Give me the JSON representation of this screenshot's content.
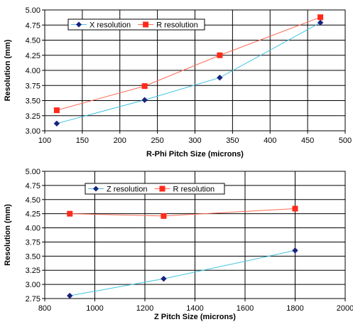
{
  "chart_data": [
    {
      "type": "line",
      "title": "",
      "xlabel": "R-Phi Pitch Size (microns)",
      "ylabel": "Resolution (mm)",
      "xlim": [
        100,
        500
      ],
      "ylim": [
        3.0,
        5.0
      ],
      "xticks": [
        "100",
        "150",
        "200",
        "250",
        "300",
        "350",
        "400",
        "450",
        "500"
      ],
      "yticks": [
        "3.00",
        "3.25",
        "3.50",
        "3.75",
        "4.00",
        "4.25",
        "4.50",
        "4.75",
        "5.00"
      ],
      "grid": true,
      "legend_position": "top-left",
      "series": [
        {
          "name": "X resolution",
          "marker": "diamond",
          "marker_color": "#1a237e",
          "line_color": "#40c4e0",
          "x": [
            116,
            233,
            333,
            467
          ],
          "y": [
            3.12,
            3.51,
            3.88,
            4.79
          ]
        },
        {
          "name": "R resolution",
          "marker": "square",
          "marker_color": "#ff2a1a",
          "line_color": "#ff6a55",
          "x": [
            116,
            233,
            333,
            467
          ],
          "y": [
            3.34,
            3.74,
            4.25,
            4.88
          ]
        }
      ]
    },
    {
      "type": "line",
      "title": "",
      "xlabel": "Z Pitch Size (microns)",
      "ylabel": "Resolution (mm)",
      "xlim": [
        800,
        2000
      ],
      "ylim": [
        2.75,
        5.0
      ],
      "xticks": [
        "800",
        "1000",
        "1200",
        "1400",
        "1600",
        "1800",
        "2000"
      ],
      "yticks": [
        "2.75",
        "3.00",
        "3.25",
        "3.50",
        "3.75",
        "4.00",
        "4.25",
        "4.50",
        "4.75",
        "5.00"
      ],
      "grid": true,
      "legend_position": "top-left",
      "series": [
        {
          "name": "Z resolution",
          "marker": "diamond",
          "marker_color": "#1a237e",
          "line_color": "#40c4e0",
          "x": [
            900,
            1275,
            1800
          ],
          "y": [
            2.8,
            3.1,
            3.6
          ]
        },
        {
          "name": "R resolution",
          "marker": "square",
          "marker_color": "#ff2a1a",
          "line_color": "#ff6a55",
          "x": [
            900,
            1275,
            1800
          ],
          "y": [
            4.25,
            4.21,
            4.34
          ]
        }
      ]
    }
  ]
}
